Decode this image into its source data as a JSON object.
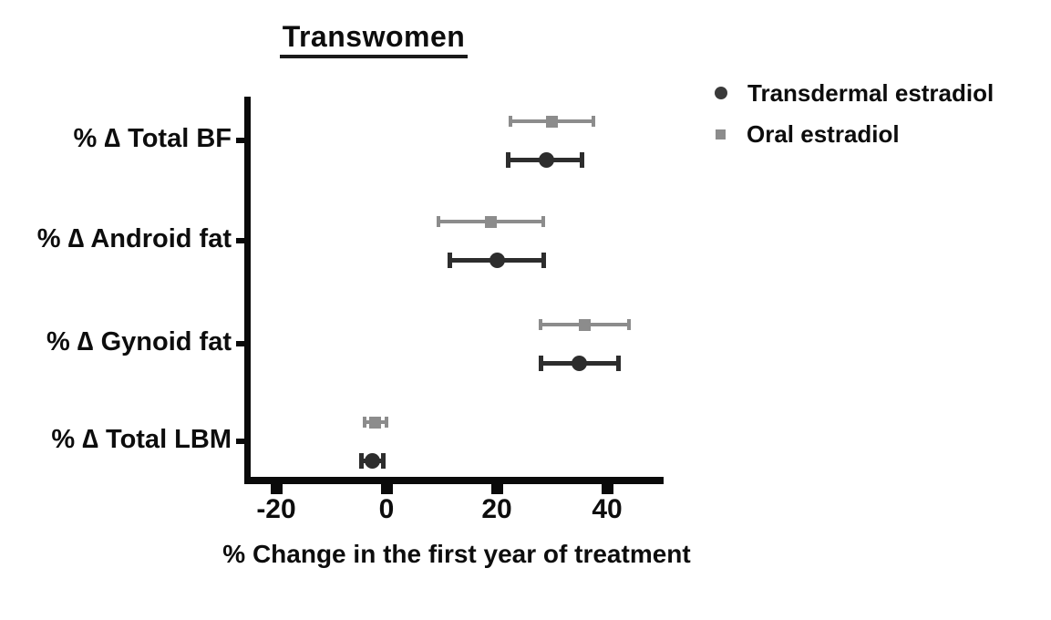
{
  "chart_data": {
    "type": "scatter",
    "subtype": "horizontal-dot-plot-with-error-bars",
    "title": "Transwomen",
    "xlabel": "% Change in the first year of treatment",
    "categories": [
      "% ∆ Total BF",
      "% ∆ Android fat",
      "% ∆ Gynoid fat",
      "% ∆ Total LBM"
    ],
    "series": [
      {
        "name": "Transdermal estradiol",
        "marker": "circle",
        "color": "#2d2d2d",
        "values": [
          29,
          20,
          35,
          -2.5
        ],
        "ci_low": [
          22,
          11.5,
          28,
          -4.5
        ],
        "ci_high": [
          35.5,
          28.5,
          42,
          -0.5
        ]
      },
      {
        "name": "Oral estradiol",
        "marker": "square",
        "color": "#8c8c8c",
        "values": [
          30,
          19,
          36,
          -2
        ],
        "ci_low": [
          22.5,
          9.5,
          28,
          -4
        ],
        "ci_high": [
          37.5,
          28.5,
          44,
          0
        ]
      }
    ],
    "x_ticks": [
      -20,
      0,
      20,
      40
    ],
    "xlim": [
      -26,
      50
    ],
    "grid": false,
    "legend_position": "top-right",
    "axis_color": "#0a0a0a"
  }
}
